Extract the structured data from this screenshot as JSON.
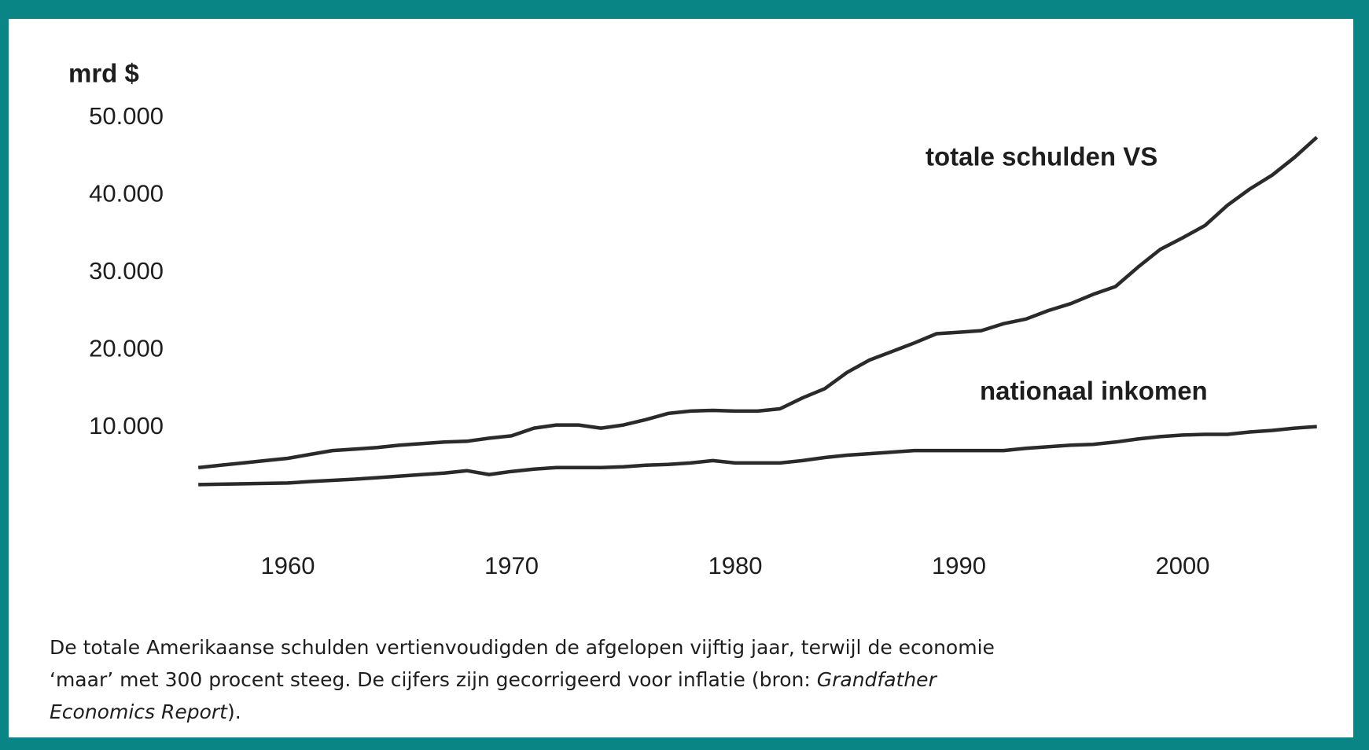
{
  "chart_data": {
    "type": "line",
    "y_axis_label": "mrd $",
    "x": [
      1956,
      1957,
      1958,
      1959,
      1960,
      1961,
      1962,
      1963,
      1964,
      1965,
      1966,
      1967,
      1968,
      1969,
      1970,
      1971,
      1972,
      1973,
      1974,
      1975,
      1976,
      1977,
      1978,
      1979,
      1980,
      1981,
      1982,
      1983,
      1984,
      1985,
      1986,
      1987,
      1988,
      1989,
      1990,
      1991,
      1992,
      1993,
      1994,
      1995,
      1996,
      1997,
      1998,
      1999,
      2000,
      2001,
      2002,
      2003,
      2004,
      2005,
      2006
    ],
    "series": [
      {
        "name": "totale schulden VS",
        "color": "#2a2a2a",
        "values": [
          4800,
          5100,
          5400,
          5700,
          6000,
          6500,
          7000,
          7200,
          7400,
          7700,
          7900,
          8100,
          8200,
          8600,
          8900,
          9900,
          10300,
          10300,
          9900,
          10300,
          11000,
          11800,
          12100,
          12200,
          12100,
          12100,
          12400,
          13800,
          15000,
          17100,
          18700,
          19800,
          20900,
          22100,
          22300,
          22500,
          23400,
          24000,
          25100,
          26000,
          27200,
          28200,
          30700,
          33000,
          34500,
          36100,
          38700,
          40800,
          42600,
          44900,
          47500
        ]
      },
      {
        "name": "nationaal inkomen",
        "color": "#2a2a2a",
        "values": [
          2600,
          2650,
          2700,
          2750,
          2800,
          3000,
          3150,
          3300,
          3500,
          3700,
          3900,
          4100,
          4400,
          3900,
          4300,
          4600,
          4800,
          4800,
          4800,
          4900,
          5100,
          5200,
          5400,
          5700,
          5400,
          5400,
          5400,
          5700,
          6100,
          6400,
          6600,
          6800,
          7000,
          7000,
          7000,
          7000,
          7000,
          7300,
          7500,
          7700,
          7800,
          8100,
          8500,
          8800,
          9000,
          9100,
          9100,
          9400,
          9600,
          9900,
          10100
        ]
      }
    ],
    "xlim": [
      1955,
      2007
    ],
    "xticks": [
      1960,
      1970,
      1980,
      1990,
      2000
    ],
    "ylim": [
      0,
      52000
    ],
    "yticks": [
      {
        "value": 10000,
        "label": "10.000"
      },
      {
        "value": 20000,
        "label": "20.000"
      },
      {
        "value": 30000,
        "label": "30.000"
      },
      {
        "value": 40000,
        "label": "40.000"
      },
      {
        "value": 50000,
        "label": "50.000"
      }
    ],
    "grid": false,
    "caption": [
      [
        {
          "text": "De totale Amerikaanse schulden vertienvoudigden de afgelopen vijftig jaar, terwijl de economie",
          "italic": false
        }
      ],
      [
        {
          "text": "‘maar’ met 300 procent steeg. De cijfers zijn gecorrigeerd voor inflatie (bron: ",
          "italic": false
        },
        {
          "text": "Grandfather",
          "italic": true
        }
      ],
      [
        {
          "text": "Economics Report",
          "italic": true
        },
        {
          "text": ").",
          "italic": false
        }
      ]
    ]
  }
}
